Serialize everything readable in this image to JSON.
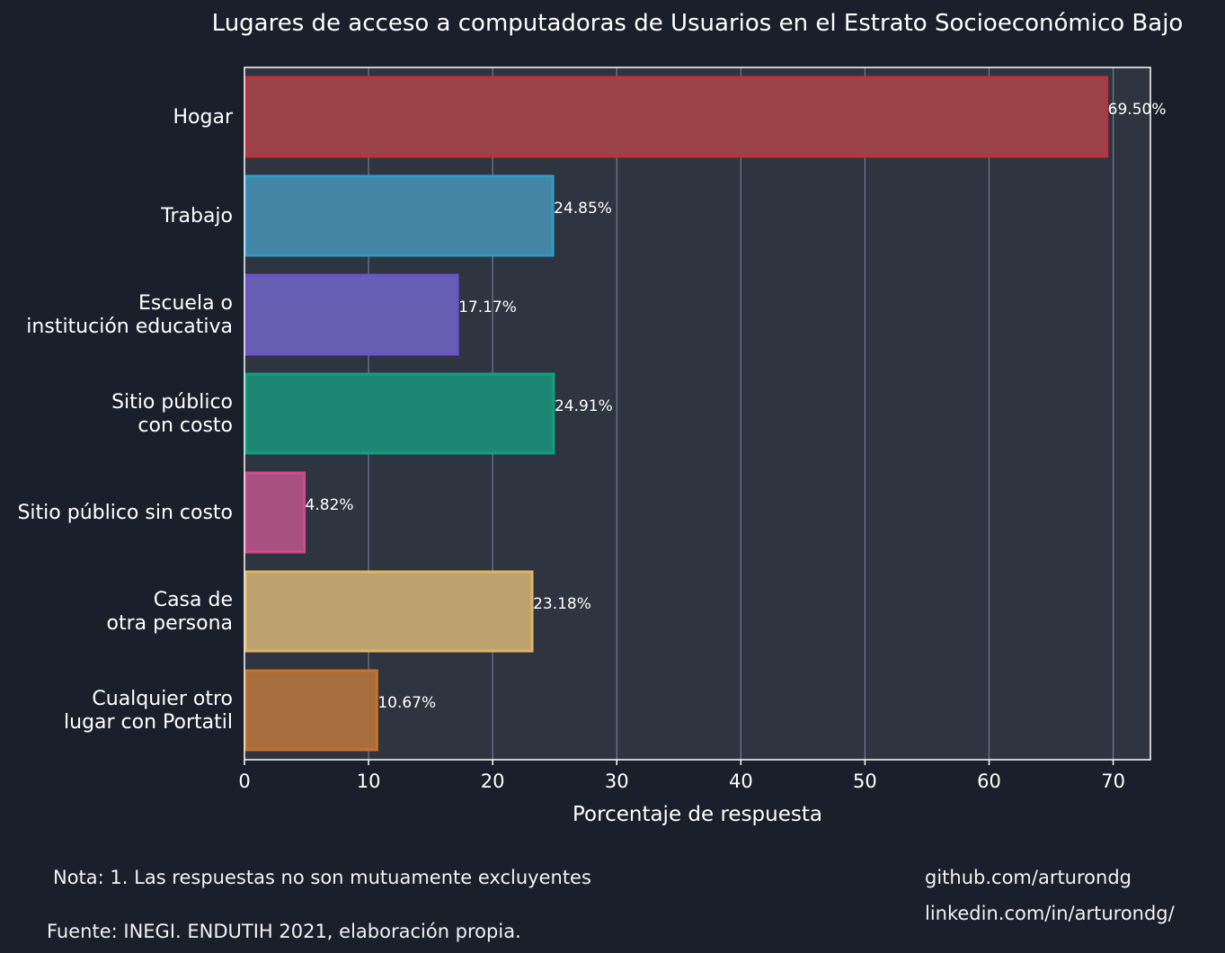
{
  "chart_data": {
    "type": "bar",
    "orientation": "horizontal",
    "title": "Lugares de acceso a computadoras de Usuarios en el Estrato Socioeconómico Bajo",
    "xlabel": "Porcentaje de respuesta",
    "ylabel": "",
    "xlim": [
      0,
      73
    ],
    "xticks": [
      0,
      10,
      20,
      30,
      40,
      50,
      60,
      70
    ],
    "grid": true,
    "categories": [
      [
        "Hogar"
      ],
      [
        "Trabajo"
      ],
      [
        "Escuela o",
        "institución educativa"
      ],
      [
        "Sitio público",
        "con costo"
      ],
      [
        "Sitio público sin costo"
      ],
      [
        "Casa de",
        "otra persona"
      ],
      [
        "Cualquier otro",
        "lugar con Portatil"
      ]
    ],
    "values": [
      69.5,
      24.85,
      17.17,
      24.91,
      4.82,
      23.18,
      10.67
    ],
    "value_labels": [
      "69.50%",
      "24.85%",
      "17.17%",
      "24.91%",
      "4.82%",
      "23.18%",
      "10.67%"
    ],
    "colors": {
      "fill": [
        "#9b4348",
        "#4484a4",
        "#665fb4",
        "#1d8773",
        "#a85180",
        "#bda26f",
        "#a76d3c"
      ],
      "stroke": [
        "#c0303a",
        "#2f9bc9",
        "#6a52d0",
        "#11a07e",
        "#d14a8e",
        "#e0b463",
        "#c87329"
      ],
      "background": "#19202b",
      "plot_background": "#2e3440",
      "grid": "#717d92"
    }
  },
  "notes": {
    "nota": "Nota: 1. Las respuestas no son mutuamente excluyentes",
    "fuente": "Fuente: INEGI. ENDUTIH 2021, elaboración propia.",
    "github": "github.com/arturondg",
    "linkedin": "linkedin.com/in/arturondg/"
  }
}
